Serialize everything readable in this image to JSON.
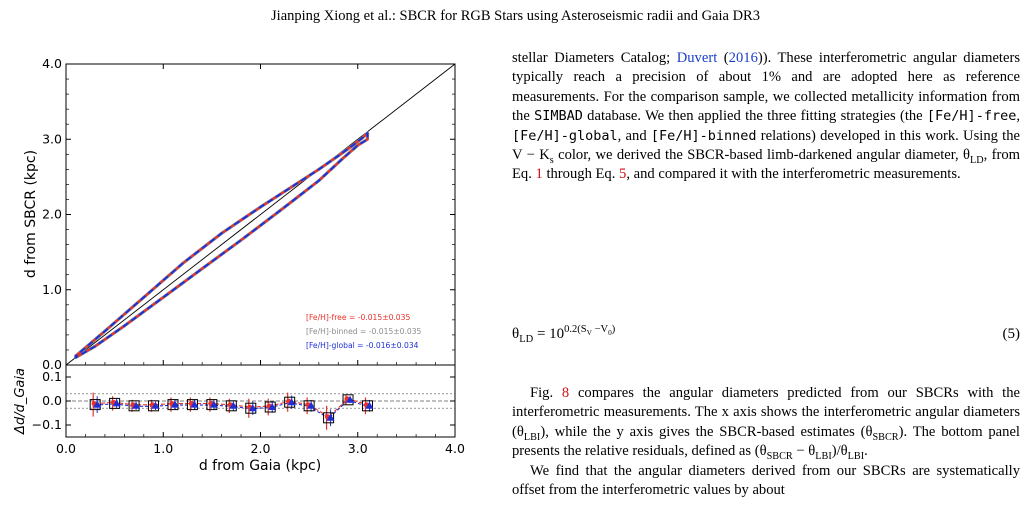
{
  "header": "Jianping Xiong et al.: SBCR for RGB Stars using Asteroseismic radii and Gaia DR3",
  "figure": {
    "chart_data": {
      "type": "line",
      "xlabel": "d from Gaia (kpc)",
      "ylabel_top": "d from SBCR (kpc)",
      "ylabel_bottom": "Δd/d_Gaia",
      "xlim": [
        0,
        4
      ],
      "ylim_top": [
        0,
        4
      ],
      "ylim_bottom": [
        -0.15,
        0.15
      ],
      "xticks": [
        "0.0",
        "1.0",
        "2.0",
        "3.0",
        "4.0"
      ],
      "yticks_top": [
        "0.0",
        "1.0",
        "2.0",
        "3.0",
        "4.0"
      ],
      "yticks_bottom": [
        "0.1",
        "0.0",
        "−0.1"
      ],
      "legend_placement": "lower-right",
      "colors": {
        "free": "#e8312a",
        "binned": "#8c8c8c",
        "global": "#1f2fd6",
        "one_to_one": "#000000"
      },
      "legend": [
        {
          "label": "[Fe/H]-free = -0.015±0.035",
          "color": "#e8312a"
        },
        {
          "label": "[Fe/H]-binned = -0.015±0.035",
          "color": "#8c8c8c"
        },
        {
          "label": "[Fe/H]-global = -0.016±0.034",
          "color": "#1f2fd6"
        }
      ],
      "contour_upper": {
        "x": [
          0.1,
          0.4,
          0.8,
          1.2,
          1.6,
          2.0,
          2.3,
          2.6,
          2.8,
          2.95,
          3.05,
          3.1
        ],
        "y": [
          0.12,
          0.45,
          0.9,
          1.35,
          1.75,
          2.1,
          2.35,
          2.6,
          2.78,
          2.92,
          3.02,
          3.08
        ]
      },
      "contour_lower": {
        "x": [
          3.1,
          3.0,
          2.85,
          2.6,
          2.2,
          1.8,
          1.4,
          1.0,
          0.6,
          0.3,
          0.1
        ],
        "y": [
          3.0,
          2.92,
          2.75,
          2.45,
          2.05,
          1.66,
          1.28,
          0.9,
          0.52,
          0.25,
          0.1
        ]
      },
      "residuals": {
        "x": [
          0.3,
          0.5,
          0.7,
          0.9,
          1.1,
          1.3,
          1.5,
          1.7,
          1.9,
          2.1,
          2.3,
          2.5,
          2.7,
          2.9,
          3.1
        ],
        "y": [
          -0.015,
          -0.01,
          -0.02,
          -0.02,
          -0.015,
          -0.015,
          -0.015,
          -0.02,
          -0.03,
          -0.025,
          -0.005,
          -0.02,
          -0.07,
          0.005,
          -0.02
        ],
        "err": [
          0.05,
          0.03,
          0.025,
          0.025,
          0.03,
          0.03,
          0.03,
          0.03,
          0.04,
          0.035,
          0.04,
          0.035,
          0.05,
          0.02,
          0.035
        ]
      },
      "reference_lines_bottom": [
        0.03,
        0.0,
        -0.03
      ]
    }
  },
  "text": {
    "p1": {
      "a": "stellar Diameters Catalog; ",
      "ref": "Duvert",
      "b": " (",
      "year": "2016",
      "c": ")). These interferometric angular diameters typically reach a precision of about 1% and are adopted here as reference measurements. For the comparison sample, we collected metallicity information from the ",
      "simbad": "SIMBAD",
      "d": " database. We then applied the three fitting strategies (the ",
      "free": "[Fe/H]-free",
      "e": ", ",
      "global": "[Fe/H]-global",
      "f": ", and ",
      "binned": "[Fe/H]-binned",
      "g": " relations) developed in this work. Using the V − K",
      "g_sub": "s",
      "h": " color, we derived the SBCR-based limb-darkened angular diameter, θ",
      "h_sub": "LD",
      "i": ", from Eq. ",
      "eq1": "1",
      "j": " through Eq. ",
      "eq5": "5",
      "k": ", and compared it with the interferometric measurements."
    },
    "equation": {
      "lhs": "θ",
      "lhs_sub": "LD",
      "mid": " = 10",
      "exp": "0.2(S",
      "exp_sub": "V",
      "exp_end": " −V",
      "exp_sub2": "0",
      "exp_close": ")",
      "number": "(5)"
    },
    "p2": {
      "a": "Fig. ",
      "fig": "8",
      "b": " compares the angular diameters predicted from our SBCRs with the interferometric measurements. The x axis shows the interferometric angular diameters (θ",
      "b_sub": "LBI",
      "c": "), while the y axis gives the SBCR-based estimates (θ",
      "c_sub": "SBCR",
      "d": "). The bottom panel presents the relative residuals, defined as (θ",
      "d_sub": "SBCR",
      "e": " − θ",
      "e_sub": "LBI",
      "f": ")/θ",
      "f_sub": "LBI",
      "g": "."
    },
    "p3": "We find that the angular diameters derived from our SBCRs are systematically offset from the interferometric values by about"
  }
}
